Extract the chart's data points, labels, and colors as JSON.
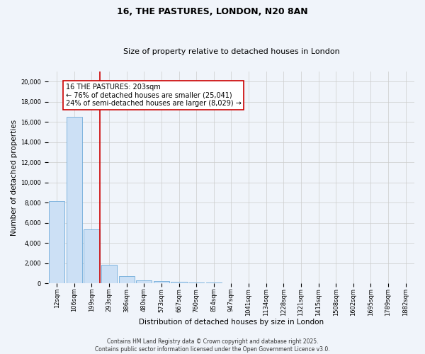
{
  "title": "16, THE PASTURES, LONDON, N20 8AN",
  "subtitle": "Size of property relative to detached houses in London",
  "xlabel": "Distribution of detached houses by size in London",
  "ylabel": "Number of detached properties",
  "categories": [
    "12sqm",
    "106sqm",
    "199sqm",
    "293sqm",
    "386sqm",
    "480sqm",
    "573sqm",
    "667sqm",
    "760sqm",
    "854sqm",
    "947sqm",
    "1041sqm",
    "1134sqm",
    "1228sqm",
    "1321sqm",
    "1415sqm",
    "1508sqm",
    "1602sqm",
    "1695sqm",
    "1789sqm",
    "1882sqm"
  ],
  "values": [
    8200,
    16500,
    5350,
    1850,
    700,
    320,
    230,
    170,
    130,
    100,
    0,
    0,
    0,
    0,
    0,
    0,
    0,
    0,
    0,
    0,
    0
  ],
  "bar_color": "#cce0f5",
  "bar_edge_color": "#5a9fd4",
  "highlight_bar_index": 2,
  "highlight_line_color": "#cc0000",
  "annotation_text": "16 THE PASTURES: 203sqm\n← 76% of detached houses are smaller (25,041)\n24% of semi-detached houses are larger (8,029) →",
  "annotation_box_color": "#ffffff",
  "annotation_box_edge_color": "#cc0000",
  "ylim": [
    0,
    21000
  ],
  "yticks": [
    0,
    2000,
    4000,
    6000,
    8000,
    10000,
    12000,
    14000,
    16000,
    18000,
    20000
  ],
  "grid_color": "#cccccc",
  "background_color": "#f0f4fa",
  "footer_text": "Contains HM Land Registry data © Crown copyright and database right 2025.\nContains public sector information licensed under the Open Government Licence v3.0.",
  "title_fontsize": 9,
  "subtitle_fontsize": 8,
  "annotation_fontsize": 7,
  "axis_label_fontsize": 7.5,
  "tick_fontsize": 6,
  "footer_fontsize": 5.5
}
